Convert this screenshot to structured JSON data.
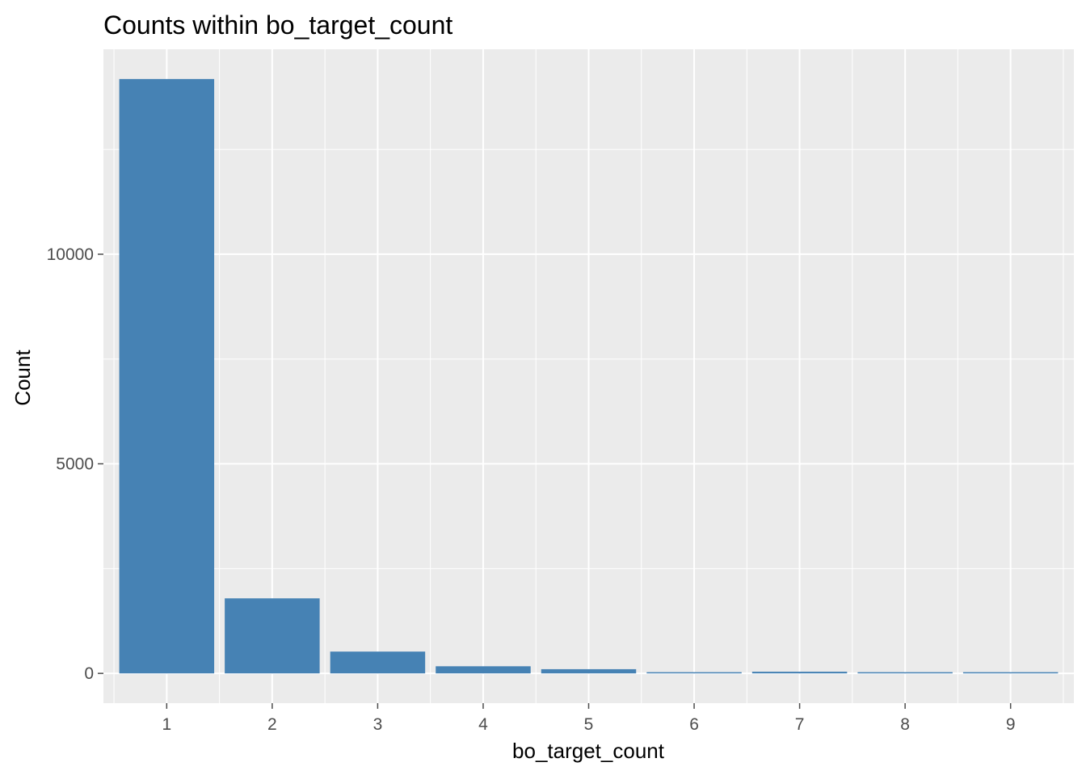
{
  "chart_data": {
    "type": "bar",
    "title": "Counts within bo_target_count",
    "xlabel": "bo_target_count",
    "ylabel": "Count",
    "categories": [
      "1",
      "2",
      "3",
      "4",
      "5",
      "6",
      "7",
      "8",
      "9"
    ],
    "values": [
      14180,
      1790,
      520,
      170,
      100,
      15,
      40,
      15,
      10
    ],
    "yticks": [
      0,
      5000,
      10000
    ],
    "ytick_labels": [
      "0",
      "5000",
      "10000"
    ],
    "ylim": [
      -710,
      14890
    ],
    "grid": true,
    "colors": {
      "bar": "#4682B4",
      "panel": "#EBEBEB",
      "grid": "#FFFFFF",
      "tick": "#4D4D4D"
    }
  }
}
